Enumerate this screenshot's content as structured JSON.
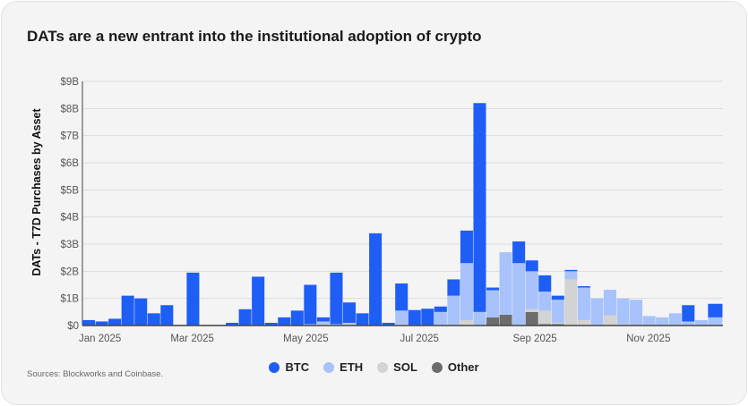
{
  "title": "DATs are a new entrant into the institutional adoption of crypto",
  "source": "Sources: Blockworks and Coinbase.",
  "chart_data": {
    "type": "bar",
    "stacked": true,
    "title": "DATs are a new entrant into the institutional adoption of crypto",
    "ylabel": "DATs - T7D Purchases by Asset",
    "xlabel": "",
    "ylim": [
      0,
      9
    ],
    "yticks": [
      "$0",
      "$1B",
      "$2B",
      "$3B",
      "$4B",
      "$5B",
      "$6B",
      "$7B",
      "$8B",
      "$9B"
    ],
    "xlim": [
      "2025-01-01",
      "2025-12-11"
    ],
    "xticks": [
      {
        "label": "Jan 2025",
        "date": "2025-01-01"
      },
      {
        "label": "Mar 2025",
        "date": "2025-03-01"
      },
      {
        "label": "May 2025",
        "date": "2025-05-01"
      },
      {
        "label": "Jul 2025",
        "date": "2025-07-01"
      },
      {
        "label": "Sep 2025",
        "date": "2025-09-01"
      },
      {
        "label": "Nov 2025",
        "date": "2025-11-01"
      }
    ],
    "grid": true,
    "legend_position": "bottom",
    "unit": "$B",
    "colors": {
      "BTC": "#1f5ef5",
      "ETH": "#a8c3fb",
      "SOL": "#d3d3d3",
      "Other": "#6c6c6c"
    },
    "x": [
      "2025-01-01",
      "2025-01-08",
      "2025-01-15",
      "2025-01-22",
      "2025-01-29",
      "2025-02-05",
      "2025-02-12",
      "2025-02-19",
      "2025-02-26",
      "2025-03-05",
      "2025-03-12",
      "2025-03-19",
      "2025-03-26",
      "2025-04-02",
      "2025-04-09",
      "2025-04-16",
      "2025-04-23",
      "2025-04-30",
      "2025-05-07",
      "2025-05-14",
      "2025-05-21",
      "2025-05-28",
      "2025-06-04",
      "2025-06-11",
      "2025-06-18",
      "2025-06-25",
      "2025-07-02",
      "2025-07-09",
      "2025-07-16",
      "2025-07-23",
      "2025-07-30",
      "2025-08-06",
      "2025-08-13",
      "2025-08-20",
      "2025-08-27",
      "2025-09-03",
      "2025-09-10",
      "2025-09-17",
      "2025-09-24",
      "2025-10-01",
      "2025-10-08",
      "2025-10-15",
      "2025-10-22",
      "2025-10-29",
      "2025-11-05",
      "2025-11-12",
      "2025-11-19",
      "2025-11-26",
      "2025-12-03"
    ],
    "series": [
      {
        "name": "Other",
        "values": [
          0,
          0,
          0,
          0,
          0,
          0,
          0,
          0,
          0,
          0,
          0,
          0,
          0,
          0,
          0,
          0,
          0,
          0,
          0,
          0,
          0,
          0,
          0,
          0,
          0,
          0.02,
          0.02,
          0,
          0,
          0,
          0,
          0.3,
          0.4,
          0,
          0.5,
          0.05,
          0.05,
          0,
          0,
          0,
          0.02,
          0,
          0,
          0,
          0,
          0,
          0,
          0,
          0
        ]
      },
      {
        "name": "SOL",
        "values": [
          0,
          0,
          0,
          0,
          0,
          0,
          0,
          0,
          0,
          0,
          0,
          0,
          0,
          0,
          0,
          0,
          0,
          0,
          0.05,
          0,
          0.05,
          0,
          0,
          0,
          0.05,
          0,
          0,
          0,
          0,
          0.2,
          0,
          0,
          0,
          0,
          0.1,
          0.5,
          0.05,
          1.7,
          0.2,
          0,
          0.35,
          0.05,
          0,
          0,
          0,
          0,
          0,
          0,
          0
        ]
      },
      {
        "name": "ETH",
        "values": [
          0,
          0,
          0,
          0,
          0,
          0,
          0,
          0,
          0,
          0,
          0,
          0,
          0,
          0,
          0,
          0,
          0,
          0.05,
          0.1,
          0.05,
          0.05,
          0,
          0,
          0,
          0.5,
          0,
          0,
          0.5,
          1.1,
          2.1,
          0.5,
          1.0,
          2.3,
          2.3,
          1.4,
          0.7,
          0.85,
          0.3,
          1.2,
          1.0,
          0.95,
          0.95,
          0.95,
          0.35,
          0.3,
          0.45,
          0.15,
          0.2,
          0.3
        ]
      },
      {
        "name": "BTC",
        "values": [
          0.2,
          0.15,
          0.25,
          1.1,
          1.0,
          0.45,
          0.75,
          0.02,
          1.95,
          0.02,
          0.02,
          0.1,
          0.6,
          1.8,
          0.1,
          0.3,
          0.55,
          1.45,
          0.15,
          1.9,
          0.75,
          0.45,
          3.4,
          0.1,
          1.0,
          0.55,
          0.6,
          0.2,
          0.6,
          1.2,
          7.7,
          0.1,
          0,
          0.8,
          0.4,
          0.6,
          0.15,
          0.05,
          0.05,
          0,
          0,
          0,
          0,
          0,
          0,
          0,
          0.6,
          0,
          0.5
        ]
      }
    ]
  },
  "legend": [
    {
      "label": "BTC",
      "color": "#1f5ef5"
    },
    {
      "label": "ETH",
      "color": "#a8c3fb"
    },
    {
      "label": "SOL",
      "color": "#d3d3d3"
    },
    {
      "label": "Other",
      "color": "#6c6c6c"
    }
  ]
}
